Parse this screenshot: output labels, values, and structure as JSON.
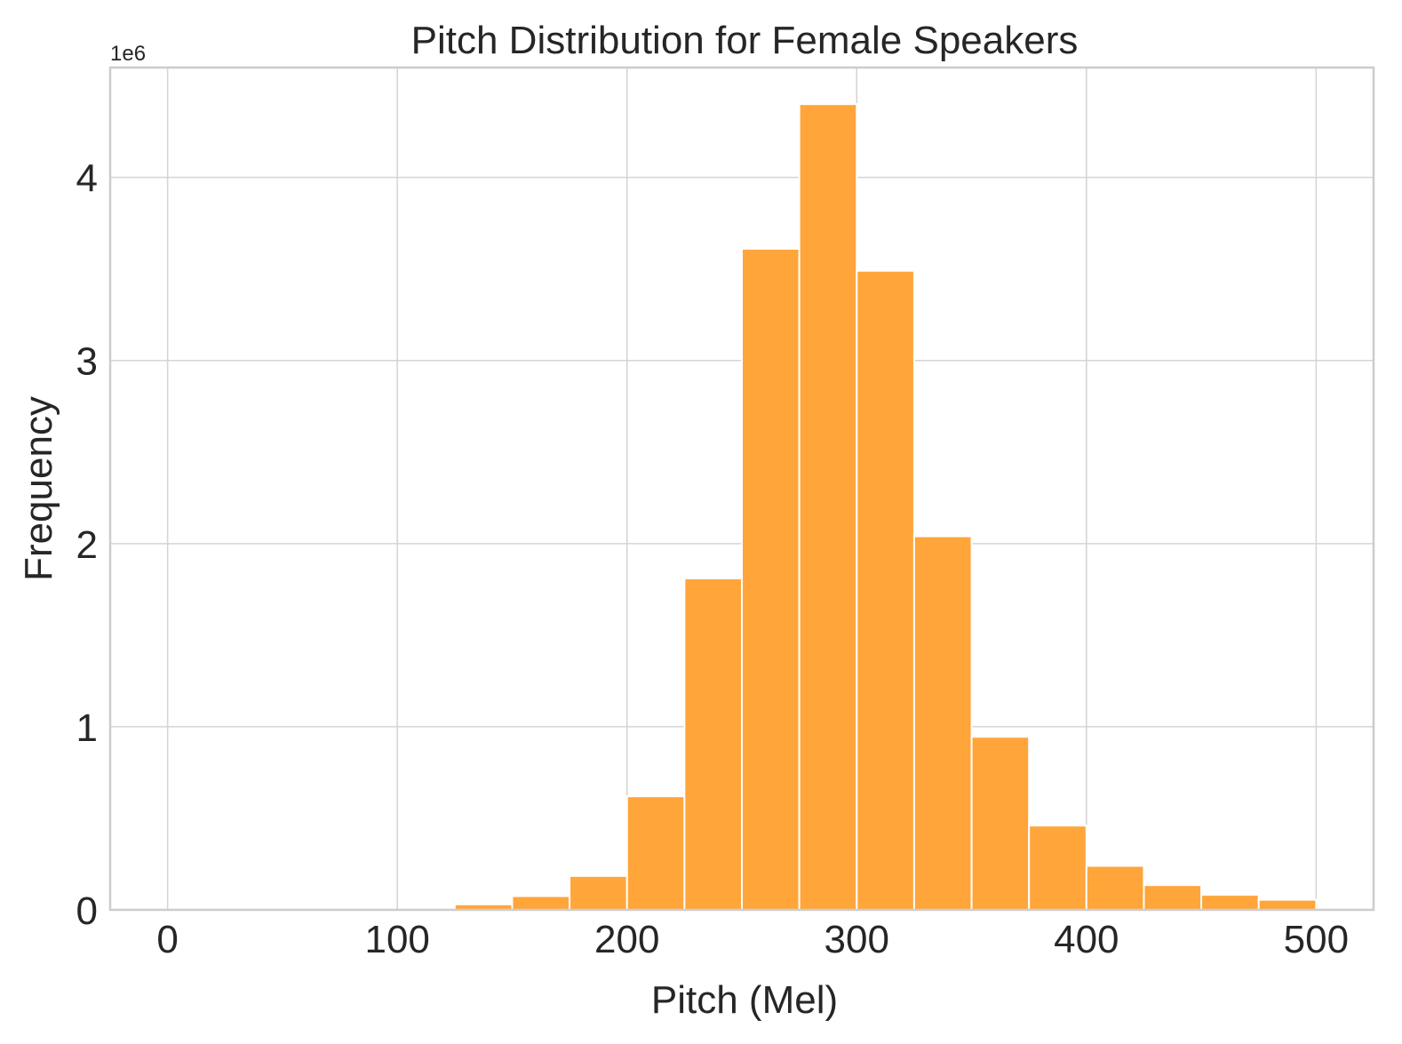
{
  "chart_data": {
    "type": "bar",
    "title": "Pitch Distribution for Female Speakers",
    "xlabel": "Pitch (Mel)",
    "ylabel": "Frequency",
    "y_offset_label": "1e6",
    "y_scale": 1000000,
    "xlim": [
      -25,
      525
    ],
    "ylim": [
      0,
      4600000
    ],
    "x_ticks": [
      0,
      100,
      200,
      300,
      400,
      500
    ],
    "x_tick_labels": [
      "0",
      "100",
      "200",
      "300",
      "400",
      "500"
    ],
    "y_ticks": [
      0,
      1000000,
      2000000,
      3000000,
      4000000
    ],
    "y_tick_labels": [
      "0",
      "1",
      "2",
      "3",
      "4"
    ],
    "grid": true,
    "bar_color": "#ffa53a",
    "bins": [
      {
        "x0": 125,
        "x1": 150,
        "value": 30000
      },
      {
        "x0": 150,
        "x1": 175,
        "value": 75000
      },
      {
        "x0": 175,
        "x1": 200,
        "value": 185000
      },
      {
        "x0": 200,
        "x1": 225,
        "value": 620000
      },
      {
        "x0": 225,
        "x1": 250,
        "value": 1810000
      },
      {
        "x0": 250,
        "x1": 275,
        "value": 3610000
      },
      {
        "x0": 275,
        "x1": 300,
        "value": 4400000
      },
      {
        "x0": 300,
        "x1": 325,
        "value": 3490000
      },
      {
        "x0": 325,
        "x1": 350,
        "value": 2040000
      },
      {
        "x0": 350,
        "x1": 375,
        "value": 945000
      },
      {
        "x0": 375,
        "x1": 400,
        "value": 460000
      },
      {
        "x0": 400,
        "x1": 425,
        "value": 240000
      },
      {
        "x0": 425,
        "x1": 450,
        "value": 135000
      },
      {
        "x0": 450,
        "x1": 475,
        "value": 82000
      },
      {
        "x0": 475,
        "x1": 500,
        "value": 55000
      }
    ]
  }
}
